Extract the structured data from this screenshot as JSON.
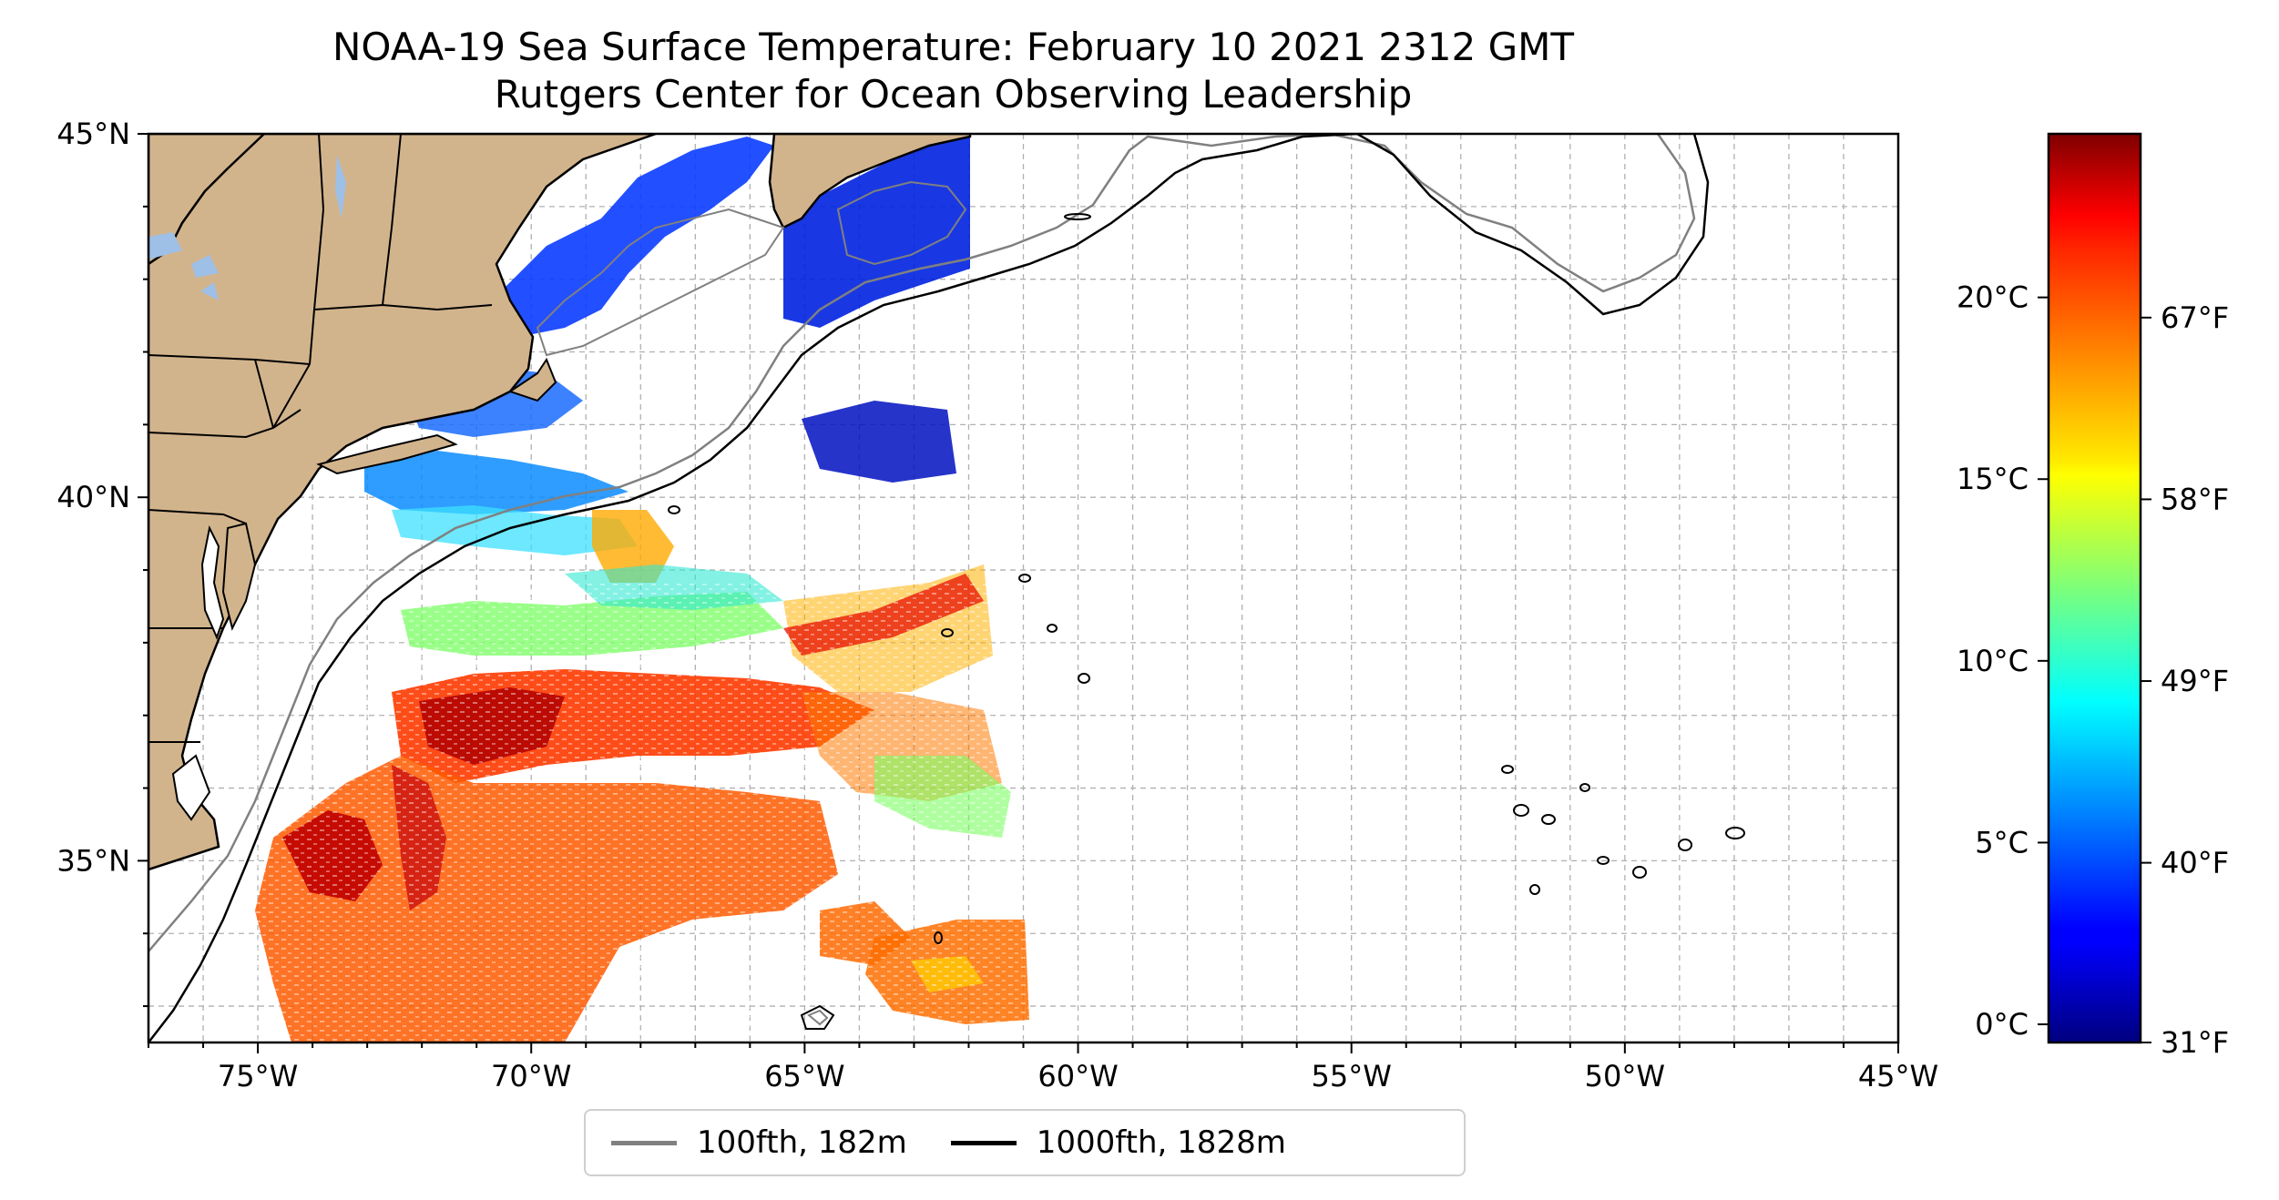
{
  "title": {
    "line1": "NOAA-19 Sea Surface Temperature: February 10 2021 2312 GMT",
    "line2": "Rutgers Center for Ocean Observing Leadership"
  },
  "map": {
    "lon_range": [
      -77,
      -45
    ],
    "lat_range": [
      32.5,
      45
    ],
    "lon_ticks": [
      -75,
      -70,
      -65,
      -60,
      -55,
      -50,
      -45
    ],
    "lon_tick_labels": [
      "75°W",
      "70°W",
      "65°W",
      "60°W",
      "55°W",
      "50°W",
      "45°W"
    ],
    "lat_ticks": [
      35,
      40,
      45
    ],
    "lat_tick_labels": [
      "35°N",
      "40°N",
      "45°N"
    ],
    "gridlines": true,
    "colors": {
      "land": "#d2b48c",
      "inland_water": "#9ebfe6",
      "isobath_100fth": "#808080",
      "isobath_1000fth": "#000000",
      "grid": "#b0b0b0"
    }
  },
  "colorbar": {
    "colormap": "jet",
    "range_c": [
      -0.5,
      24.5
    ],
    "celsius_ticks": [
      0,
      5,
      10,
      15,
      20
    ],
    "celsius_labels": [
      "0°C",
      "5°C",
      "10°C",
      "15°C",
      "20°C"
    ],
    "fahrenheit_ticks": [
      31,
      40,
      49,
      58,
      67
    ],
    "fahrenheit_labels": [
      "31°F",
      "40°F",
      "49°F",
      "58°F",
      "67°F"
    ]
  },
  "legend": {
    "items": [
      {
        "label": "100fth, 182m",
        "color": "#808080"
      },
      {
        "label": "1000fth, 1828m",
        "color": "#000000"
      }
    ]
  }
}
